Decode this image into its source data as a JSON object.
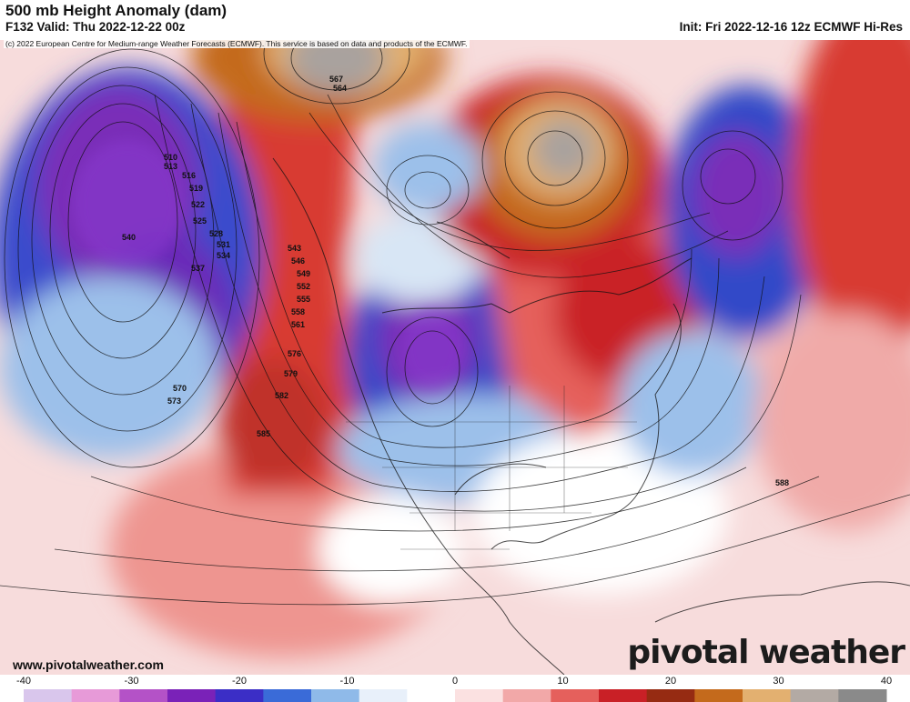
{
  "header": {
    "title": "500 mb Height Anomaly (dam)",
    "valid": "F132 Valid: Thu 2022-12-22 00z",
    "init": "Init: Fri 2022-12-16 12z ECMWF Hi-Res",
    "copyright": "(c) 2022 European Centre for Medium-range Weather Forecasts (ECMWF). This service is based on data and products of the ECMWF."
  },
  "footer": {
    "url": "www.pivotalweather.com",
    "brand": "pivotal weather"
  },
  "colorbar": {
    "ticks": [
      "-40",
      "-30",
      "-20",
      "-10",
      "0",
      "10",
      "20",
      "30",
      "40"
    ],
    "colors": [
      "#d9c6ec",
      "#e79ad8",
      "#b452c7",
      "#7a22b8",
      "#3b2ec6",
      "#3a6bd8",
      "#8fbae9",
      "#e8f0fa",
      "#ffffff",
      "#fbe1e1",
      "#f2a8a8",
      "#e5605c",
      "#c92026",
      "#962b12",
      "#c46a1c",
      "#e3b070",
      "#b3aaa4",
      "#8a8a8a"
    ]
  },
  "map": {
    "colors": {
      "ocean_base": "#f7dcdc",
      "negative_strong": "#7a2fb8",
      "negative": "#3048c8",
      "negative_light": "#9cc0ea",
      "positive": "#d83a32",
      "positive_strong": "#a81e20",
      "positive_extreme": "#c46a1c",
      "high_center": "#a9a29e"
    },
    "contour_labels": [
      "510",
      "513",
      "516",
      "519",
      "522",
      "525",
      "528",
      "531",
      "534",
      "537",
      "540",
      "543",
      "546",
      "549",
      "552",
      "555",
      "558",
      "561",
      "564",
      "567",
      "570",
      "573",
      "576",
      "579",
      "582",
      "585",
      "588"
    ],
    "features": [
      {
        "name": "north-pacific-low",
        "anomaly": "negative"
      },
      {
        "name": "west-coast-ridge",
        "anomaly": "positive"
      },
      {
        "name": "central-us-trough",
        "anomaly": "negative"
      },
      {
        "name": "greenland-block",
        "anomaly": "positive"
      },
      {
        "name": "north-atlantic-low",
        "anomaly": "negative"
      }
    ]
  }
}
